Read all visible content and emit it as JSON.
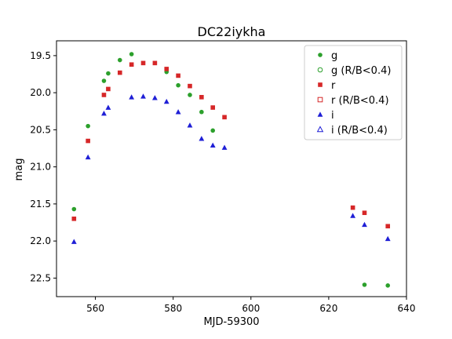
{
  "chart_data": {
    "type": "scatter",
    "title": "DC22iykha",
    "xlabel": "MJD-59300",
    "ylabel": "mag",
    "xlim": [
      550,
      640
    ],
    "ylim": [
      22.75,
      19.3
    ],
    "y_inverted": true,
    "xticks": [
      560,
      580,
      600,
      620,
      640
    ],
    "yticks": [
      19.5,
      20.0,
      20.5,
      21.0,
      21.5,
      22.0,
      22.5
    ],
    "grid": false,
    "legend_position": "top-right",
    "series": [
      {
        "name": "g",
        "marker": "circle",
        "filled": true,
        "color": "#2ca02c",
        "points": [
          [
            554.5,
            21.57
          ],
          [
            558.1,
            20.45
          ],
          [
            562.2,
            19.84
          ],
          [
            563.3,
            19.74
          ],
          [
            566.3,
            19.56
          ],
          [
            569.3,
            19.48
          ],
          [
            578.3,
            19.72
          ],
          [
            581.3,
            19.9
          ],
          [
            584.3,
            20.03
          ],
          [
            587.3,
            20.26
          ],
          [
            590.2,
            20.51
          ],
          [
            629.2,
            22.59
          ],
          [
            635.2,
            22.6
          ]
        ]
      },
      {
        "name": "g (R/B<0.4)",
        "marker": "circle",
        "filled": false,
        "color": "#2ca02c",
        "points": []
      },
      {
        "name": "r",
        "marker": "square",
        "filled": true,
        "color": "#d62728",
        "points": [
          [
            554.5,
            21.7
          ],
          [
            558.1,
            20.65
          ],
          [
            562.2,
            20.03
          ],
          [
            563.3,
            19.95
          ],
          [
            566.3,
            19.73
          ],
          [
            569.3,
            19.62
          ],
          [
            572.3,
            19.6
          ],
          [
            575.3,
            19.6
          ],
          [
            578.3,
            19.68
          ],
          [
            581.3,
            19.77
          ],
          [
            584.3,
            19.91
          ],
          [
            587.3,
            20.06
          ],
          [
            590.2,
            20.2
          ],
          [
            593.2,
            20.33
          ],
          [
            626.2,
            21.55
          ],
          [
            629.2,
            21.62
          ],
          [
            635.2,
            21.8
          ]
        ]
      },
      {
        "name": "r (R/B<0.4)",
        "marker": "square",
        "filled": false,
        "color": "#d62728",
        "points": []
      },
      {
        "name": "i",
        "marker": "triangle",
        "filled": true,
        "color": "#1f1fd6",
        "points": [
          [
            554.5,
            22.01
          ],
          [
            558.1,
            20.87
          ],
          [
            562.2,
            20.28
          ],
          [
            563.3,
            20.2
          ],
          [
            569.3,
            20.06
          ],
          [
            572.3,
            20.05
          ],
          [
            575.3,
            20.07
          ],
          [
            578.3,
            20.12
          ],
          [
            581.3,
            20.26
          ],
          [
            584.3,
            20.44
          ],
          [
            587.3,
            20.62
          ],
          [
            590.2,
            20.71
          ],
          [
            593.2,
            20.74
          ],
          [
            626.2,
            21.66
          ],
          [
            629.2,
            21.78
          ],
          [
            635.2,
            21.97
          ]
        ]
      },
      {
        "name": "i (R/B<0.4)",
        "marker": "triangle",
        "filled": false,
        "color": "#1f1fd6",
        "points": []
      }
    ]
  }
}
